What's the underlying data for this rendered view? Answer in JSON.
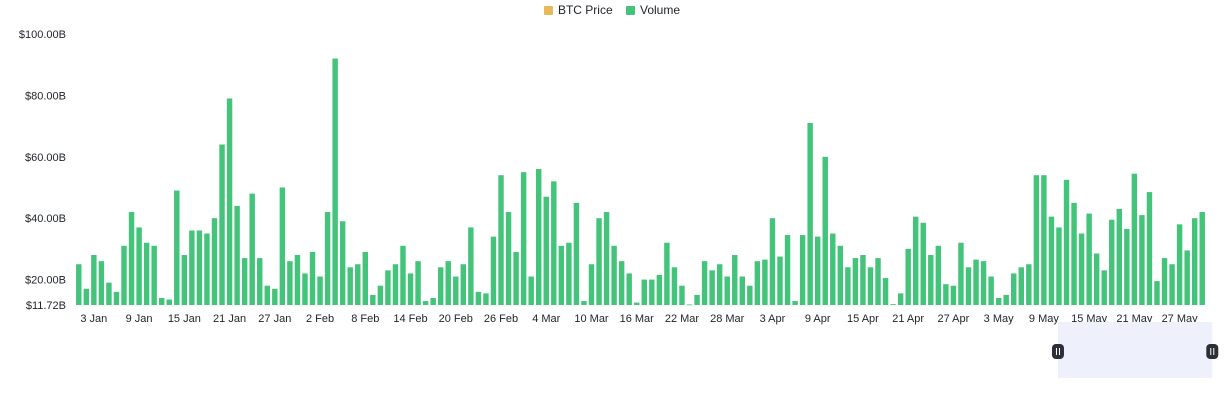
{
  "legend": {
    "items": [
      {
        "label": "BTC Price",
        "color": "#e8b95a"
      },
      {
        "label": "Volume",
        "color": "#44c47a"
      }
    ]
  },
  "chart_data": {
    "type": "bar",
    "y_unit": "USD (billions)",
    "ylim": [
      11.72,
      100
    ],
    "y_ticks": [
      11.72,
      20,
      40,
      60,
      80,
      100
    ],
    "y_tick_labels": [
      "$11.72B",
      "$20.00B",
      "$40.00B",
      "$60.00B",
      "$80.00B",
      "$100.00B"
    ],
    "x_tick_labels": [
      "3 Jan",
      "9 Jan",
      "15 Jan",
      "21 Jan",
      "27 Jan",
      "2 Feb",
      "8 Feb",
      "14 Feb",
      "20 Feb",
      "26 Feb",
      "4 Mar",
      "10 Mar",
      "16 Mar",
      "22 Mar",
      "28 Mar",
      "3 Apr",
      "9 Apr",
      "15 Apr",
      "21 Apr",
      "27 Apr",
      "3 May",
      "9 May",
      "15 May",
      "21 May",
      "27 May"
    ],
    "first_date": "2024-01-01",
    "series": [
      {
        "name": "Volume",
        "color": "#44c47a",
        "values": [
          25,
          17,
          28,
          26,
          19,
          16,
          31,
          42,
          37,
          32,
          31,
          14,
          13.5,
          49,
          28,
          36,
          36,
          35,
          40,
          64,
          79,
          44,
          27,
          48,
          27,
          18,
          17,
          50,
          26,
          28,
          22,
          29,
          21,
          42,
          92,
          39,
          24,
          25,
          29,
          15,
          18,
          23,
          25,
          31,
          22,
          26,
          13,
          14,
          24,
          26,
          21,
          25,
          37,
          16,
          15.5,
          34,
          54,
          42,
          29,
          55,
          21,
          56,
          47,
          52,
          31,
          32,
          45,
          13,
          25,
          40,
          42,
          31,
          26,
          22,
          12.5,
          20,
          20,
          21.5,
          32,
          24,
          18,
          11.9,
          15,
          26,
          23,
          25,
          21,
          28,
          21,
          18,
          26,
          26.5,
          40,
          27.5,
          34.5,
          13,
          34.5,
          71,
          34,
          60,
          35,
          31,
          24,
          27,
          28,
          24,
          27,
          20.5,
          12,
          15.5,
          30,
          40.5,
          38.5,
          28,
          31,
          18.5,
          18,
          32,
          24,
          26.5,
          26,
          21,
          14,
          15,
          22,
          24,
          25,
          54,
          54,
          40.5,
          37,
          52.5,
          45,
          35,
          41.5,
          28.5,
          23,
          39.5,
          43,
          36.5,
          54.5,
          41,
          48.5,
          19.5,
          27,
          25,
          38,
          29.5,
          40,
          42
        ]
      }
    ]
  },
  "range_selector": {
    "start_fraction": 0.86,
    "end_fraction": 0.995
  }
}
